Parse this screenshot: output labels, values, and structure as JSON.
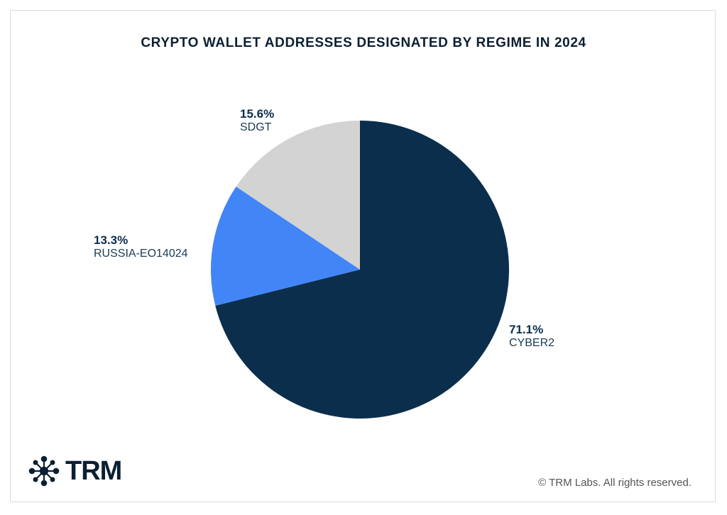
{
  "chart_data": {
    "type": "pie",
    "title": "CRYPTO WALLET ADDRESSES DESIGNATED BY REGIME IN 2024",
    "start": "top",
    "direction": "clockwise",
    "slices": [
      {
        "label": "CYBER2",
        "value": 71.1,
        "display": "71.1%",
        "color": "#0b2e4d"
      },
      {
        "label": "RUSSIA-EO14024",
        "value": 13.3,
        "display": "13.3%",
        "color": "#4285f7"
      },
      {
        "label": "SDGT",
        "value": 15.6,
        "display": "15.6%",
        "color": "#d3d3d3"
      }
    ]
  },
  "branding": {
    "logo": "TRM",
    "copyright": "© TRM Labs. All rights reserved."
  }
}
